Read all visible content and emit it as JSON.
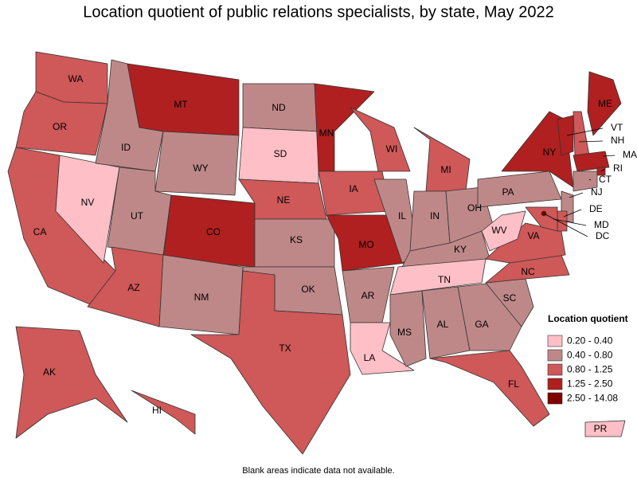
{
  "title": "Location quotient of public relations specialists, by state, May 2022",
  "legend": {
    "title": "Location quotient",
    "items": [
      {
        "label": "0.20 - 0.40",
        "color": "#ffbfc6"
      },
      {
        "label": "0.40 - 0.80",
        "color": "#bf8888"
      },
      {
        "label": "0.80 - 1.25",
        "color": "#cf5858"
      },
      {
        "label": "1.25 - 2.50",
        "color": "#b02020"
      },
      {
        "label": "2.50 - 14.08",
        "color": "#800000"
      }
    ]
  },
  "states": [
    {
      "label": "WA",
      "class": 2
    },
    {
      "label": "OR",
      "class": 2
    },
    {
      "label": "CA",
      "class": 2
    },
    {
      "label": "NV",
      "class": 0
    },
    {
      "label": "ID",
      "class": 1
    },
    {
      "label": "MT",
      "class": 3
    },
    {
      "label": "WY",
      "class": 1
    },
    {
      "label": "UT",
      "class": 1
    },
    {
      "label": "AZ",
      "class": 2
    },
    {
      "label": "CO",
      "class": 3
    },
    {
      "label": "NM",
      "class": 1
    },
    {
      "label": "ND",
      "class": 1
    },
    {
      "label": "SD",
      "class": 0
    },
    {
      "label": "NE",
      "class": 2
    },
    {
      "label": "KS",
      "class": 1
    },
    {
      "label": "OK",
      "class": 1
    },
    {
      "label": "TX",
      "class": 2
    },
    {
      "label": "MN",
      "class": 3
    },
    {
      "label": "IA",
      "class": 2
    },
    {
      "label": "MO",
      "class": 3
    },
    {
      "label": "AR",
      "class": 1
    },
    {
      "label": "LA",
      "class": 0
    },
    {
      "label": "WI",
      "class": 2
    },
    {
      "label": "IL",
      "class": 1
    },
    {
      "label": "MI",
      "class": 2
    },
    {
      "label": "IN",
      "class": 1
    },
    {
      "label": "OH",
      "class": 1
    },
    {
      "label": "KY",
      "class": 1
    },
    {
      "label": "TN",
      "class": 0
    },
    {
      "label": "MS",
      "class": 1
    },
    {
      "label": "AL",
      "class": 1
    },
    {
      "label": "GA",
      "class": 1
    },
    {
      "label": "FL",
      "class": 2
    },
    {
      "label": "SC",
      "class": 1
    },
    {
      "label": "NC",
      "class": 2
    },
    {
      "label": "VA",
      "class": 2
    },
    {
      "label": "WV",
      "class": 0
    },
    {
      "label": "PA",
      "class": 1
    },
    {
      "label": "NY",
      "class": 3
    },
    {
      "label": "VT",
      "class": 3
    },
    {
      "label": "NH",
      "class": 2
    },
    {
      "label": "ME",
      "class": 3
    },
    {
      "label": "MA",
      "class": 3
    },
    {
      "label": "RI",
      "class": 3
    },
    {
      "label": "CT",
      "class": 1
    },
    {
      "label": "NJ",
      "class": 1
    },
    {
      "label": "DE",
      "class": 2
    },
    {
      "label": "MD",
      "class": 2
    },
    {
      "label": "DC",
      "class": 4
    },
    {
      "label": "AK",
      "class": 2
    },
    {
      "label": "HI",
      "class": 2
    },
    {
      "label": "PR",
      "class": 0
    }
  ],
  "note": "Blank areas indicate data not available."
}
